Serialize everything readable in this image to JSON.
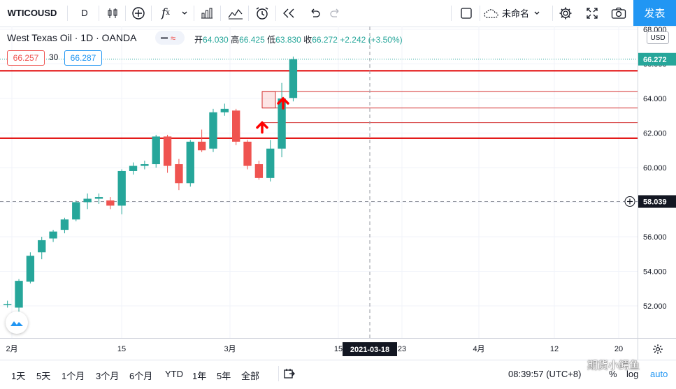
{
  "toolbar": {
    "symbol": "WTICOUSD",
    "interval": "D",
    "layout_name": "未命名",
    "publish_label": "发表"
  },
  "legend": {
    "title": "West Texas Oil · 1D · OANDA",
    "open_label": "开",
    "open": "64.030",
    "high_label": "高",
    "high": "66.425",
    "low_label": "低",
    "low": "63.830",
    "close_label": "收",
    "close": "66.272",
    "change": "+2.242 (+3.50%)",
    "sell_price": "66.257",
    "spread": "30",
    "buy_price": "66.287"
  },
  "price_axis": {
    "currency": "USD",
    "ticks": [
      "68.000",
      "66.000",
      "64.000",
      "62.000",
      "60.000",
      "58.000",
      "56.000",
      "54.000",
      "52.000"
    ],
    "last_price": "66.272",
    "crosshair_price": "58.039"
  },
  "time_axis": {
    "labels": [
      "2月",
      "15",
      "3月",
      "15",
      "23",
      "4月",
      "12",
      "20"
    ],
    "crosshair_date": "2021-03-18"
  },
  "bottom_bar": {
    "ranges": [
      "1天",
      "5天",
      "1个月",
      "3个月",
      "6个月",
      "YTD",
      "1年",
      "5年",
      "全部"
    ],
    "time": "08:39:57 (UTC+8)",
    "percent_label": "%",
    "log_label": "log",
    "auto_label": "auto"
  },
  "watermark": "期货小鳄鱼",
  "colors": {
    "up": "#26a69a",
    "down": "#ef5350",
    "level_line": "#e00000",
    "accent": "#2196f3"
  },
  "chart_data": {
    "type": "candlestick",
    "ylim": [
      50.8,
      68.6
    ],
    "candles": [
      {
        "date": "2021-01-29",
        "o": 52.05,
        "h": 52.3,
        "l": 51.9,
        "c": 52.1
      },
      {
        "date": "2021-02-01",
        "o": 51.9,
        "h": 53.55,
        "l": 51.6,
        "c": 53.45
      },
      {
        "date": "2021-02-02",
        "o": 53.4,
        "h": 55.1,
        "l": 53.3,
        "c": 54.9
      },
      {
        "date": "2021-02-03",
        "o": 55.1,
        "h": 56.0,
        "l": 54.7,
        "c": 55.8
      },
      {
        "date": "2021-02-04",
        "o": 55.9,
        "h": 56.4,
        "l": 55.7,
        "c": 56.3
      },
      {
        "date": "2021-02-05",
        "o": 56.4,
        "h": 57.1,
        "l": 56.2,
        "c": 57.0
      },
      {
        "date": "2021-02-08",
        "o": 57.0,
        "h": 58.1,
        "l": 56.9,
        "c": 58.0
      },
      {
        "date": "2021-02-09",
        "o": 58.0,
        "h": 58.5,
        "l": 57.6,
        "c": 58.2
      },
      {
        "date": "2021-02-10",
        "o": 58.2,
        "h": 58.5,
        "l": 57.9,
        "c": 58.3
      },
      {
        "date": "2021-02-11",
        "o": 58.1,
        "h": 58.3,
        "l": 57.6,
        "c": 57.8
      },
      {
        "date": "2021-02-12",
        "o": 57.8,
        "h": 59.9,
        "l": 57.3,
        "c": 59.8
      },
      {
        "date": "2021-02-15",
        "o": 59.8,
        "h": 60.3,
        "l": 59.6,
        "c": 60.1
      },
      {
        "date": "2021-02-16",
        "o": 60.1,
        "h": 60.4,
        "l": 59.9,
        "c": 60.2
      },
      {
        "date": "2021-02-17",
        "o": 60.2,
        "h": 61.9,
        "l": 60.0,
        "c": 61.8
      },
      {
        "date": "2021-02-18",
        "o": 61.8,
        "h": 61.9,
        "l": 59.7,
        "c": 60.1
      },
      {
        "date": "2021-02-19",
        "o": 60.2,
        "h": 60.5,
        "l": 58.7,
        "c": 59.1
      },
      {
        "date": "2021-02-22",
        "o": 59.1,
        "h": 61.6,
        "l": 58.9,
        "c": 61.5
      },
      {
        "date": "2021-02-23",
        "o": 61.5,
        "h": 62.2,
        "l": 60.9,
        "c": 61.0
      },
      {
        "date": "2021-02-24",
        "o": 61.1,
        "h": 63.4,
        "l": 60.9,
        "c": 63.2
      },
      {
        "date": "2021-02-25",
        "o": 63.2,
        "h": 63.7,
        "l": 63.0,
        "c": 63.4
      },
      {
        "date": "2021-02-26",
        "o": 63.3,
        "h": 63.4,
        "l": 61.3,
        "c": 61.5
      },
      {
        "date": "2021-03-01",
        "o": 61.5,
        "h": 61.6,
        "l": 59.9,
        "c": 60.1
      },
      {
        "date": "2021-03-02",
        "o": 60.2,
        "h": 60.4,
        "l": 59.3,
        "c": 59.4
      },
      {
        "date": "2021-03-03",
        "o": 59.4,
        "h": 61.6,
        "l": 59.2,
        "c": 61.1
      },
      {
        "date": "2021-03-04",
        "o": 61.1,
        "h": 64.9,
        "l": 60.6,
        "c": 64.0
      },
      {
        "date": "2021-03-05",
        "o": 64.03,
        "h": 66.425,
        "l": 63.83,
        "c": 66.272
      }
    ],
    "horizontal_levels": [
      65.6,
      61.7
    ],
    "marked_levels": [
      64.4,
      63.45,
      62.6
    ]
  }
}
